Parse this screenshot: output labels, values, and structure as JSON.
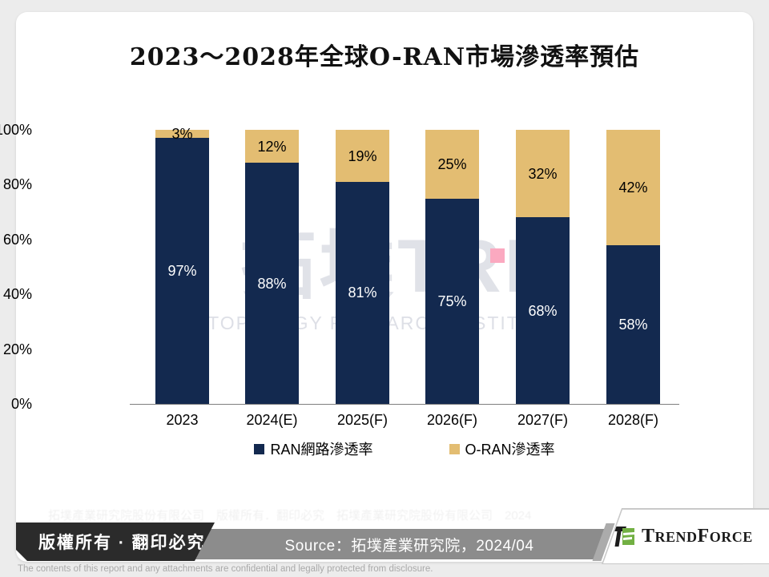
{
  "title": "2023～2028年全球O-RAN市場滲透率預估",
  "chart_data": {
    "type": "bar",
    "subtype": "stacked-percent",
    "categories": [
      "2023",
      "2024(E)",
      "2025(F)",
      "2026(F)",
      "2027(F)",
      "2028(F)"
    ],
    "series": [
      {
        "name": "RAN網路滲透率",
        "color": "#13294f",
        "values": [
          97,
          88,
          81,
          75,
          68,
          58
        ],
        "labels": [
          "97%",
          "88%",
          "81%",
          "75%",
          "68%",
          "58%"
        ]
      },
      {
        "name": "O-RAN滲透率",
        "color": "#e3bd72",
        "values": [
          3,
          12,
          19,
          25,
          32,
          42
        ],
        "labels": [
          "3%",
          "12%",
          "19%",
          "25%",
          "32%",
          "42%"
        ]
      }
    ],
    "yticks": [
      "0%",
      "20%",
      "40%",
      "60%",
      "80%",
      "100%"
    ],
    "ylim": [
      0,
      100
    ],
    "grid": false,
    "legend_position": "bottom",
    "axis_line_color": "#7f7f7f"
  },
  "watermark": {
    "line1": "拓墣TRI",
    "line2": "TOPOLOGY RESEARCH INSTITUTE",
    "square_color": "#fba9c0",
    "ghost_text": "拓墣產業研究院股份有限公司　版權所有．翻印必究　拓墣產業研究院股份有限公司　2024"
  },
  "footer": {
    "copyright": "版權所有 · 翻印必究",
    "copyright_bg": "#2b2b2b",
    "source": "Source：拓墣產業研究院，2024/04",
    "source_bg": "#8c8c8c",
    "stripe_color": "#ababab",
    "logo_parts": {
      "p1": "T",
      "p2": "REND",
      "p3": "F",
      "p4": "ORCE"
    },
    "logo_green": "#72b043",
    "logo_black": "#1c1c1c",
    "confidential": "The contents of this report and any attachments are confidential and legally protected from disclosure."
  }
}
